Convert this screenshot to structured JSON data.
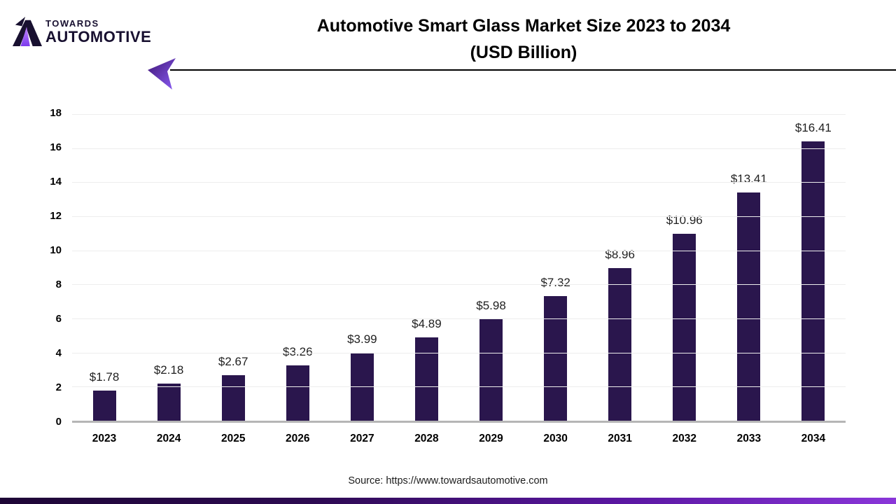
{
  "logo": {
    "line1": "TOWARDS",
    "line2": "AUTOMOTIVE"
  },
  "header": {
    "title_line1": "Automotive Smart Glass Market Size 2023 to 2034",
    "title_line2": "(USD Billion)"
  },
  "footer": {
    "source": "Source: https://www.towardsautomotive.com"
  },
  "colors": {
    "bar": "#2a164d",
    "gridline": "#ededed",
    "baseline": "#b5b5b5",
    "accent_dark": "#1e0636",
    "accent_bright": "#8a36d9",
    "logo_purple_light": "#c084fc",
    "logo_purple_dark": "#7c3aed",
    "arrow_purple_dark": "#3f1675",
    "arrow_purple_bright": "#8b5cf6"
  },
  "chart_data": {
    "type": "bar",
    "title": "Automotive Smart Glass Market Size 2023 to 2034 (USD Billion)",
    "categories": [
      "2023",
      "2024",
      "2025",
      "2026",
      "2027",
      "2028",
      "2029",
      "2030",
      "2031",
      "2032",
      "2033",
      "2034"
    ],
    "values": [
      1.78,
      2.18,
      2.67,
      3.26,
      3.99,
      4.89,
      5.98,
      7.32,
      8.96,
      10.96,
      13.41,
      16.41
    ],
    "value_labels": [
      "$1.78",
      "$2.18",
      "$2.67",
      "$3.26",
      "$3.99",
      "$4.89",
      "$5.98",
      "$7.32",
      "$8.96",
      "$10.96",
      "$13.41",
      "$16.41"
    ],
    "y_ticks": [
      0,
      2,
      4,
      6,
      8,
      10,
      12,
      14,
      16,
      18
    ],
    "ylim": [
      0,
      18
    ],
    "xlabel": "",
    "ylabel": "",
    "grid": true,
    "legend": "none"
  }
}
